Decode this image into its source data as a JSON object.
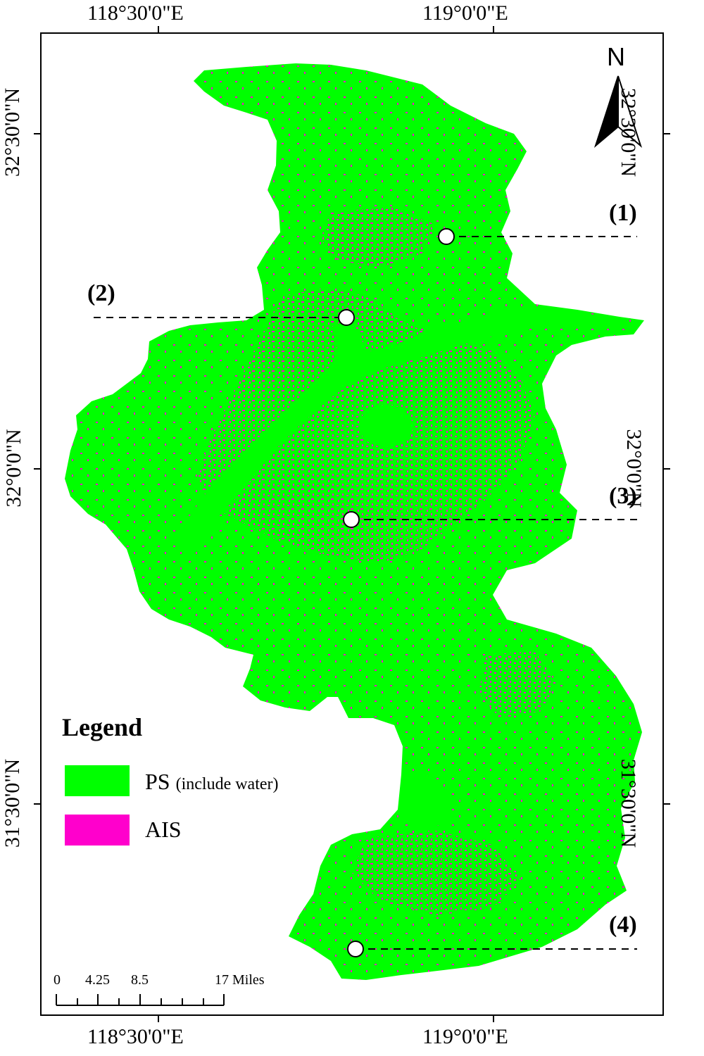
{
  "axes": {
    "top_longitudes": [
      "118°30'0\"E",
      "119°0'0\"E"
    ],
    "bottom_longitudes": [
      "118°30'0\"E",
      "119°0'0\"E"
    ],
    "left_latitudes": [
      "32°30'0\"N",
      "32°0'0\"N",
      "31°30'0\"N"
    ],
    "right_latitudes": [
      "32°30'0\"N",
      "32°0'0\"N",
      "31°30'0\"N"
    ]
  },
  "north_arrow": {
    "label": "N",
    "icon": "north-arrow-icon"
  },
  "sites": [
    {
      "label": "(1)"
    },
    {
      "label": "(2)"
    },
    {
      "label": "(3)"
    },
    {
      "label": "(4)"
    }
  ],
  "legend": {
    "title": "Legend",
    "items": [
      {
        "label": "PS",
        "note": "(include water)",
        "color": "#00ff00"
      },
      {
        "label": "AIS",
        "color": "#ff00cc"
      }
    ]
  },
  "scale_bar": {
    "ticks": [
      "0",
      "4.25",
      "8.5",
      "17 Miles"
    ]
  },
  "colors": {
    "pervious_surface": "#00ff00",
    "impervious_surface": "#ff00cc",
    "frame": "#000000"
  }
}
